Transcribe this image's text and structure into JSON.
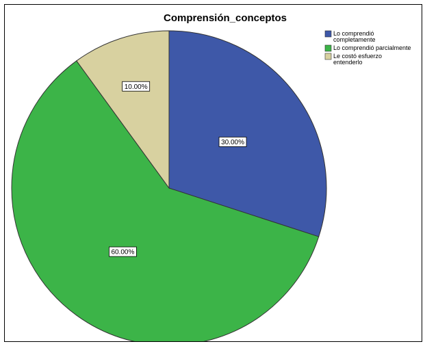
{
  "chart_data": {
    "type": "pie",
    "title": "Comprensión_conceptos",
    "categories": [
      "Lo comprendió completamente",
      "Lo comprendió parcialmente",
      "Le costó esfuerzo entenderlo"
    ],
    "values": [
      30.0,
      60.0,
      10.0
    ],
    "value_labels": [
      "30.00%",
      "60.00%",
      "10.00%"
    ],
    "colors": [
      "#3e58a8",
      "#3cb448",
      "#d8d1a0"
    ],
    "start_angle_deg": 0,
    "direction": "clockwise",
    "legend": "top-right"
  }
}
